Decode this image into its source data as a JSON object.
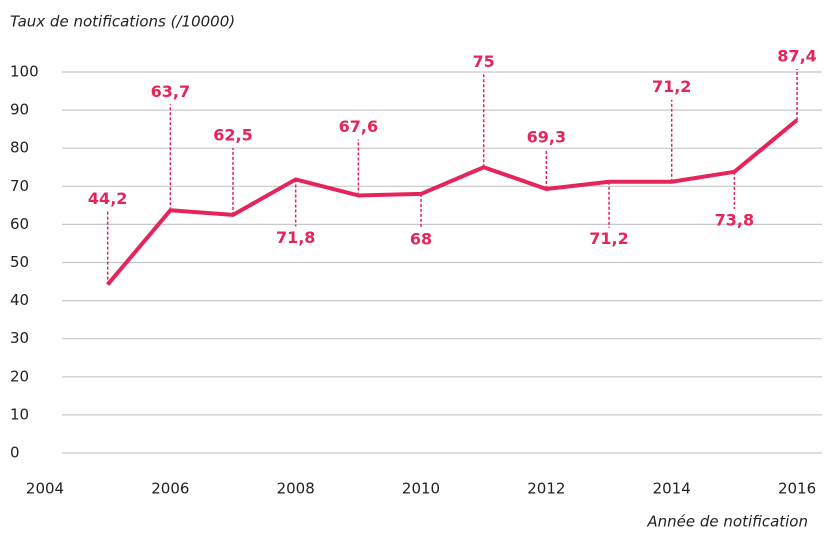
{
  "chart_data": {
    "type": "line",
    "title": "Taux de notifications  (/10000)",
    "x_label": "Année de notification",
    "x": [
      2005,
      2006,
      2007,
      2008,
      2009,
      2010,
      2011,
      2012,
      2013,
      2014,
      2015,
      2016
    ],
    "series": [
      {
        "name": "Taux de notifications",
        "color": "#e5245a",
        "values": [
          44.2,
          63.7,
          62.5,
          71.8,
          67.6,
          68,
          75,
          69.3,
          71.2,
          71.2,
          73.8,
          87.4
        ],
        "value_labels": [
          "44,2",
          "63,7",
          "62,5",
          "71,8",
          "67,6",
          "68",
          "75",
          "69,3",
          "71,2",
          "71,2",
          "73,8",
          "87,4"
        ]
      }
    ],
    "xlim": [
      2004,
      2016.4
    ],
    "xticks": [
      2004,
      2006,
      2008,
      2010,
      2012,
      2014,
      2016
    ],
    "ylim": [
      0,
      100
    ],
    "yticks": [
      0,
      10,
      20,
      30,
      40,
      50,
      60,
      70,
      80,
      90,
      100
    ],
    "grid": true
  }
}
